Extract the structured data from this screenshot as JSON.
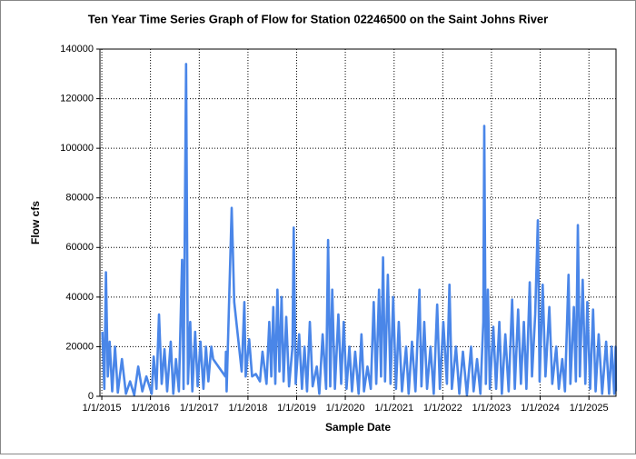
{
  "chart_data": {
    "type": "line",
    "title": "Ten Year Time Series Graph of Flow for Station 02246500 on the Saint Johns River",
    "xlabel": "Sample Date",
    "ylabel": "Flow cfs",
    "xlim": [
      "12/18/2014",
      "7/23/2025"
    ],
    "xticks": [
      "1/1/2015",
      "1/1/2016",
      "1/1/2017",
      "1/1/2018",
      "1/1/2019",
      "1/1/2020",
      "1/1/2021",
      "1/1/2022",
      "1/1/2023",
      "1/1/2024",
      "1/1/2025"
    ],
    "ylim": [
      0,
      140000
    ],
    "yticks": [
      0,
      20000,
      40000,
      60000,
      80000,
      100000,
      120000,
      140000
    ],
    "grid": true,
    "x": [
      "1/5/2015",
      "1/20/2015",
      "2/1/2015",
      "2/15/2015",
      "3/1/2015",
      "3/20/2015",
      "4/10/2015",
      "5/1/2015",
      "6/1/2015",
      "7/1/2015",
      "8/1/2015",
      "9/1/2015",
      "10/1/2015",
      "11/1/2015",
      "12/1/2015",
      "1/10/2016",
      "1/25/2016",
      "2/15/2016",
      "3/5/2016",
      "3/25/2016",
      "4/15/2016",
      "5/5/2016",
      "6/1/2016",
      "6/20/2016",
      "7/10/2016",
      "8/1/2016",
      "8/25/2016",
      "9/5/2016",
      "9/24/2016",
      "10/8/2016",
      "10/25/2016",
      "11/10/2016",
      "12/1/2016",
      "12/20/2016",
      "1/10/2017",
      "2/1/2017",
      "2/20/2017",
      "3/10/2017",
      "4/1/2017",
      "4/15/2017",
      "7/15/2017",
      "7/20/2017",
      "7/25/2017",
      "9/1/2017",
      "9/20/2017",
      "11/15/2017",
      "12/5/2017",
      "12/15/2017",
      "1/10/2018",
      "2/1/2018",
      "3/1/2018",
      "4/1/2018",
      "4/20/2018",
      "5/20/2018",
      "6/10/2018",
      "6/25/2018",
      "7/10/2018",
      "7/25/2018",
      "8/10/2018",
      "8/25/2018",
      "9/10/2018",
      "9/25/2018",
      "10/15/2018",
      "11/5/2018",
      "12/1/2018",
      "12/10/2018",
      "12/25/2018",
      "1/20/2019",
      "2/10/2019",
      "3/1/2019",
      "3/20/2019",
      "4/10/2019",
      "5/1/2019",
      "6/1/2019",
      "6/20/2019",
      "7/15/2019",
      "8/10/2019",
      "8/25/2019",
      "9/10/2019",
      "9/25/2019",
      "10/15/2019",
      "11/10/2019",
      "12/1/2019",
      "12/20/2019",
      "1/10/2020",
      "2/1/2020",
      "2/20/2020",
      "3/15/2020",
      "4/10/2020",
      "5/1/2020",
      "5/20/2020",
      "6/15/2020",
      "7/10/2020",
      "8/1/2020",
      "8/20/2020",
      "9/10/2020",
      "9/25/2020",
      "10/10/2020",
      "10/25/2020",
      "11/15/2020",
      "12/5/2020",
      "12/25/2020",
      "1/15/2021",
      "2/5/2021",
      "3/1/2021",
      "4/1/2021",
      "4/20/2021",
      "5/15/2021",
      "6/10/2021",
      "7/10/2021",
      "7/25/2021",
      "8/15/2021",
      "9/5/2021",
      "10/1/2021",
      "10/25/2021",
      "11/20/2021",
      "12/10/2021",
      "1/5/2022",
      "2/1/2022",
      "2/20/2022",
      "3/10/2022",
      "4/10/2022",
      "5/5/2022",
      "6/1/2022",
      "7/1/2022",
      "8/1/2022",
      "8/20/2022",
      "9/15/2022",
      "10/10/2022",
      "11/1/2022",
      "11/8/2022",
      "11/20/2022",
      "12/5/2022",
      "12/20/2022",
      "1/15/2023",
      "2/5/2023",
      "3/1/2023",
      "3/20/2023",
      "4/15/2023",
      "5/10/2023",
      "6/5/2023",
      "6/25/2023",
      "7/20/2023",
      "8/10/2023",
      "9/1/2023",
      "9/20/2023",
      "10/15/2023",
      "11/1/2023",
      "11/25/2023",
      "12/15/2023",
      "12/28/2023",
      "1/20/2024",
      "2/10/2024",
      "3/10/2024",
      "4/1/2024",
      "5/1/2024",
      "5/20/2024",
      "6/15/2024",
      "7/5/2024",
      "8/1/2024",
      "8/15/2024",
      "9/10/2024",
      "9/25/2024",
      "10/10/2024",
      "10/25/2024",
      "11/15/2024",
      "12/5/2024",
      "12/20/2024",
      "1/10/2025",
      "2/1/2025",
      "2/20/2025",
      "3/15/2025",
      "4/10/2025",
      "5/10/2025",
      "6/1/2025",
      "6/20/2025",
      "7/10/2025",
      "7/20/2025",
      "7/22/2025"
    ],
    "series": [
      {
        "name": "Flow cfs",
        "color": "#4a86e8",
        "values": [
          26000,
          3000,
          50000,
          8000,
          22000,
          2000,
          20000,
          1500,
          15000,
          1000,
          6000,
          500,
          12000,
          2000,
          8000,
          1000,
          16000,
          3000,
          33000,
          5000,
          19000,
          2000,
          22000,
          1000,
          15000,
          2000,
          55000,
          3000,
          134000,
          5000,
          30000,
          2000,
          26000,
          4000,
          22000,
          3000,
          20000,
          6000,
          20000,
          15000,
          8000,
          18000,
          2000,
          76000,
          38000,
          10000,
          38000,
          8000,
          23000,
          8000,
          9000,
          6000,
          18000,
          5000,
          30000,
          8000,
          36000,
          5000,
          43000,
          10000,
          40000,
          6000,
          32000,
          4000,
          20000,
          68000,
          5000,
          25000,
          3000,
          20000,
          2000,
          30000,
          4000,
          12000,
          1000,
          25000,
          3000,
          63000,
          4000,
          43000,
          3000,
          33000,
          5000,
          30000,
          3000,
          20000,
          2000,
          18000,
          1000,
          25000,
          2000,
          12000,
          3000,
          38000,
          5000,
          43000,
          8000,
          56000,
          6000,
          49000,
          5000,
          40000,
          3000,
          30000,
          2000,
          20000,
          1000,
          22000,
          2000,
          43000,
          4000,
          30000,
          3000,
          20000,
          1000,
          37000,
          3000,
          30000,
          5000,
          45000,
          3000,
          20000,
          1000,
          18000,
          500,
          20000,
          2000,
          15000,
          1000,
          30000,
          109000,
          5000,
          43000,
          3000,
          28000,
          3000,
          30000,
          1000,
          25000,
          2000,
          39000,
          3000,
          35000,
          5000,
          30000,
          3000,
          46000,
          8000,
          33000,
          71000,
          6000,
          45000,
          8000,
          36000,
          5000,
          20000,
          3000,
          15000,
          2000,
          49000,
          5000,
          36000,
          6000,
          69000,
          8000,
          47000,
          5000,
          38000,
          3000,
          35000,
          2000,
          25000,
          1000,
          22000,
          1000,
          20000,
          1000,
          20000,
          2000
        ]
      }
    ]
  }
}
